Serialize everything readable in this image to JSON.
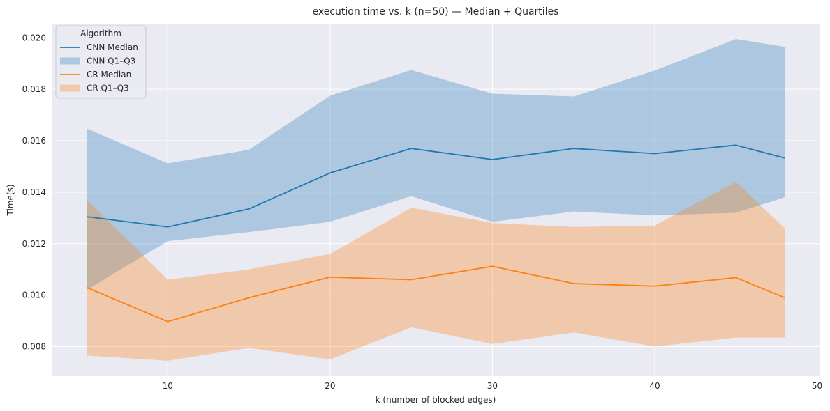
{
  "chart_data": {
    "type": "line",
    "title": "execution time vs. k (n=50) — Median + Quartiles",
    "xlabel": "k (number of blocked edges)",
    "ylabel": "Time(s)",
    "xlim": [
      2.85,
      50.15
    ],
    "ylim": [
      0.00685,
      0.02055
    ],
    "xticks": [
      10,
      20,
      30,
      40,
      50
    ],
    "yticks": [
      0.008,
      0.01,
      0.012,
      0.014,
      0.016,
      0.018,
      0.02
    ],
    "ytick_labels": [
      "0.008",
      "0.010",
      "0.012",
      "0.014",
      "0.016",
      "0.018",
      "0.020"
    ],
    "grid": true,
    "legend_title": "Algorithm",
    "legend_position": "top-left",
    "x": [
      5,
      10,
      15,
      20,
      25,
      30,
      35,
      40,
      45,
      48
    ],
    "series": [
      {
        "name": "CNN Median",
        "kind": "line",
        "color": "#1f77b4",
        "values": [
          0.01305,
          0.01265,
          0.01335,
          0.01475,
          0.0157,
          0.01527,
          0.0157,
          0.0155,
          0.01583,
          0.01533
        ]
      },
      {
        "name": "CNN Q1–Q3",
        "kind": "band",
        "color": "#1f77b4",
        "lower": [
          0.0102,
          0.0121,
          0.01245,
          0.01285,
          0.01385,
          0.01285,
          0.01325,
          0.0131,
          0.0132,
          0.0138
        ],
        "upper": [
          0.01648,
          0.01512,
          0.01565,
          0.01775,
          0.01875,
          0.01783,
          0.01772,
          0.01873,
          0.01995,
          0.01965
        ]
      },
      {
        "name": "CR Median",
        "kind": "line",
        "color": "#ff7f0e",
        "values": [
          0.0103,
          0.00897,
          0.0099,
          0.0107,
          0.0106,
          0.01112,
          0.01045,
          0.01035,
          0.01068,
          0.0099
        ]
      },
      {
        "name": "CR Q1–Q3",
        "kind": "band",
        "color": "#ff7f0e",
        "lower": [
          0.00765,
          0.00745,
          0.00795,
          0.0075,
          0.00875,
          0.0081,
          0.00855,
          0.008,
          0.00835,
          0.00835
        ],
        "upper": [
          0.01372,
          0.0106,
          0.011,
          0.0116,
          0.0134,
          0.0128,
          0.01265,
          0.0127,
          0.0144,
          0.0126
        ]
      }
    ]
  }
}
